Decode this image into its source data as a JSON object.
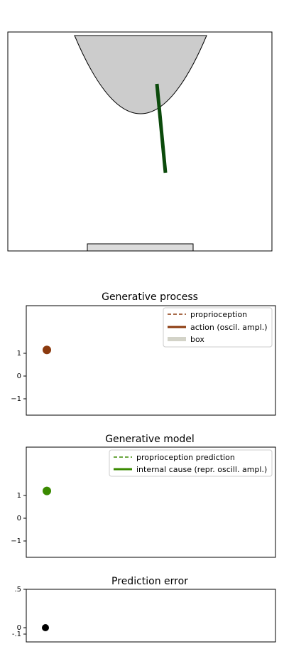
{
  "chart_data": [
    {
      "type": "scene",
      "parts": [
        "parabola-container",
        "arm",
        "box"
      ],
      "colors": {
        "container": "#cccccc",
        "arm": "#0b4a0b",
        "box": "#dcdcdc"
      }
    },
    {
      "type": "scatter",
      "title": "Generative process",
      "y_ticks": [
        "1",
        "0",
        "−1"
      ],
      "legend": [
        "proprioception",
        "action (oscil. ampl.)",
        "box"
      ],
      "legend_placement": "top-right",
      "point": {
        "y": 1.15
      },
      "colors": {
        "proprioception": "#8b3a0e",
        "action": "#8b3a0e",
        "box": "#d3d3c8",
        "point": "#8b3a0e"
      }
    },
    {
      "type": "scatter",
      "title": "Generative model",
      "y_ticks": [
        "1",
        "0",
        "−1"
      ],
      "legend": [
        "proprioception prediction",
        "internal cause (repr. oscill. ampl.)"
      ],
      "legend_placement": "top-right",
      "point": {
        "y": 1.2
      },
      "colors": {
        "proprioception_prediction": "#3a8a00",
        "internal_cause": "#3a8a00",
        "point": "#3a8a00"
      }
    },
    {
      "type": "scatter",
      "title": "Prediction error",
      "y_ticks": [
        ".5",
        "0",
        "-.1"
      ],
      "point": {
        "y": 0
      },
      "colors": {
        "point": "#000000"
      }
    }
  ]
}
